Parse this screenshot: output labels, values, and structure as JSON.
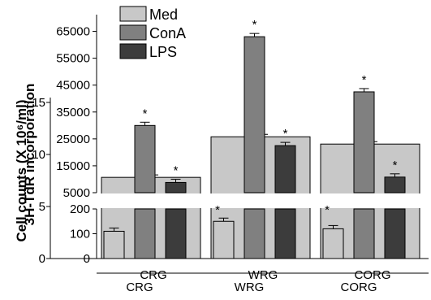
{
  "chart_data": [
    {
      "type": "bar",
      "panel": "3H-TdR incorporation",
      "ylabel": "3H-TdR incorporation",
      "ylim": [
        0,
        70000
      ],
      "axis_break": [
        200,
        5000
      ],
      "yticks": [
        "0",
        "100",
        "200",
        "5000",
        "15000",
        "25000",
        "35000",
        "45000",
        "55000",
        "65000"
      ],
      "categories": [
        "CRG",
        "WRG",
        "CORG"
      ],
      "series": [
        {
          "name": "Med",
          "color": "#c8c8c8",
          "values": [
            110,
            150,
            120
          ]
        },
        {
          "name": "ConA",
          "color": "#808080",
          "values": [
            30000,
            63000,
            42500
          ]
        },
        {
          "name": "LPS",
          "color": "#3c3c3c",
          "values": [
            8800,
            22500,
            10800
          ]
        }
      ],
      "significance": [
        [
          false,
          false,
          false
        ],
        [
          true,
          true,
          true
        ],
        [
          true,
          true,
          true
        ]
      ],
      "star_label": "*"
    },
    {
      "type": "bar",
      "panel": "Cell counts",
      "ylabel": "Cell counts (X 10⁶/ml)",
      "ylim": [
        0,
        15
      ],
      "yticks": [
        "0",
        "5",
        "10",
        "15"
      ],
      "categories": [
        "CRG",
        "WRG",
        "CORG"
      ],
      "series": [
        {
          "name": "Med",
          "color": "#c8c8c8",
          "values": [
            7.8,
            11.7,
            11.0
          ]
        }
      ]
    }
  ],
  "legend": {
    "items": [
      "Med",
      "ConA",
      "LPS"
    ]
  }
}
